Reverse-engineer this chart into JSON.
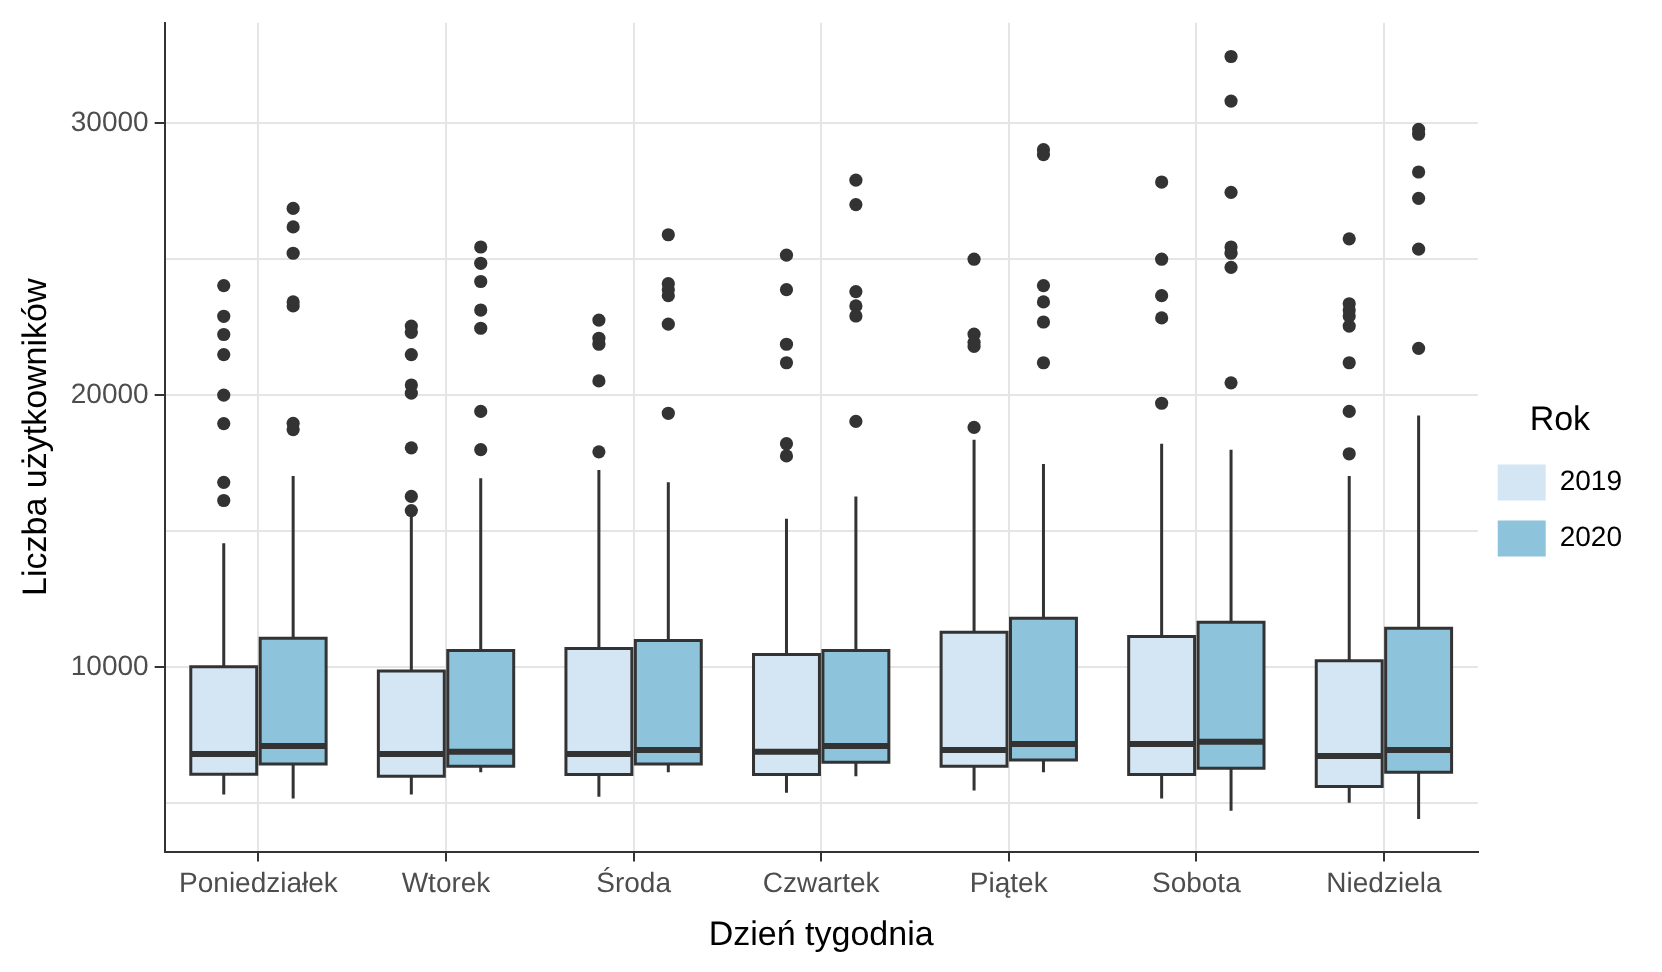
{
  "chart_data": {
    "type": "box",
    "xlabel": "Dzień tygodnia",
    "ylabel": "Liczba użytkowników",
    "legend_title": "Rok",
    "categories": [
      "Poniedziałek",
      "Wtorek",
      "Środa",
      "Czwartek",
      "Piątek",
      "Sobota",
      "Niedziela"
    ],
    "ylim": [
      3200,
      33700
    ],
    "yticks": [
      {
        "value": 5000,
        "label": null
      },
      10000,
      {
        "value": 15000,
        "label": null
      },
      20000,
      {
        "value": 25000,
        "label": null
      },
      30000
    ],
    "grid": true,
    "legend": "right",
    "series": [
      {
        "name": "2019",
        "color": "#d4e6f3",
        "boxes": [
          {
            "low": 5300,
            "q1": 6050,
            "median": 6790,
            "q3": 10000,
            "high": 14550,
            "outliers": [
              24030,
              22900,
              22230,
              21490,
              20000,
              18950,
              16790,
              16120
            ]
          },
          {
            "low": 5300,
            "q1": 5970,
            "median": 6790,
            "q3": 9850,
            "high": 15520,
            "outliers": [
              22540,
              22310,
              21490,
              20370,
              20070,
              18060,
              16270,
              15750
            ]
          },
          {
            "low": 5220,
            "q1": 6040,
            "median": 6790,
            "q3": 10670,
            "high": 17240,
            "outliers": [
              22760,
              22090,
              21870,
              20520,
              17910
            ]
          },
          {
            "low": 5370,
            "q1": 6040,
            "median": 6870,
            "q3": 10450,
            "high": 15450,
            "outliers": [
              25150,
              23880,
              21870,
              21190,
              18210,
              17760
            ]
          },
          {
            "low": 5450,
            "q1": 6340,
            "median": 6940,
            "q3": 11270,
            "high": 18360,
            "outliers": [
              25000,
              22240,
              21940,
              21790,
              18810
            ]
          },
          {
            "low": 5150,
            "q1": 6040,
            "median": 7160,
            "q3": 11120,
            "high": 18210,
            "outliers": [
              27840,
              25000,
              23660,
              22840,
              19700
            ]
          },
          {
            "low": 5000,
            "q1": 5600,
            "median": 6720,
            "q3": 10220,
            "high": 17020,
            "outliers": [
              25750,
              23360,
              23130,
              22910,
              22540,
              21190,
              19400,
              17840
            ]
          }
        ]
      },
      {
        "name": "2020",
        "color": "#8ec3dc",
        "boxes": [
          {
            "low": 5150,
            "q1": 6420,
            "median": 7090,
            "q3": 11050,
            "high": 17020,
            "outliers": [
              26870,
              26190,
              25220,
              23430,
              23280,
              18960,
              18730
            ]
          },
          {
            "low": 6120,
            "q1": 6340,
            "median": 6870,
            "q3": 10600,
            "high": 16940,
            "outliers": [
              25450,
              24850,
              24180,
              23130,
              22460,
              19400,
              17990
            ]
          },
          {
            "low": 6120,
            "q1": 6420,
            "median": 6940,
            "q3": 10970,
            "high": 16790,
            "outliers": [
              25900,
              24100,
              23880,
              23660,
              22610,
              19330
            ]
          },
          {
            "low": 5970,
            "q1": 6490,
            "median": 7090,
            "q3": 10600,
            "high": 16270,
            "outliers": [
              27910,
              27010,
              23810,
              23280,
              22910,
              19030
            ]
          },
          {
            "low": 6120,
            "q1": 6570,
            "median": 7160,
            "q3": 11790,
            "high": 17460,
            "outliers": [
              29030,
              28850,
              24030,
              23430,
              22690,
              21190
            ]
          },
          {
            "low": 4700,
            "q1": 6270,
            "median": 7240,
            "q3": 11640,
            "high": 17990,
            "outliers": [
              32460,
              30820,
              27460,
              25450,
              25220,
              24700,
              20450
            ]
          },
          {
            "low": 4400,
            "q1": 6120,
            "median": 6940,
            "q3": 11420,
            "high": 19250,
            "outliers": [
              29780,
              29600,
              28210,
              27240,
              25370,
              21720
            ]
          }
        ]
      }
    ]
  }
}
